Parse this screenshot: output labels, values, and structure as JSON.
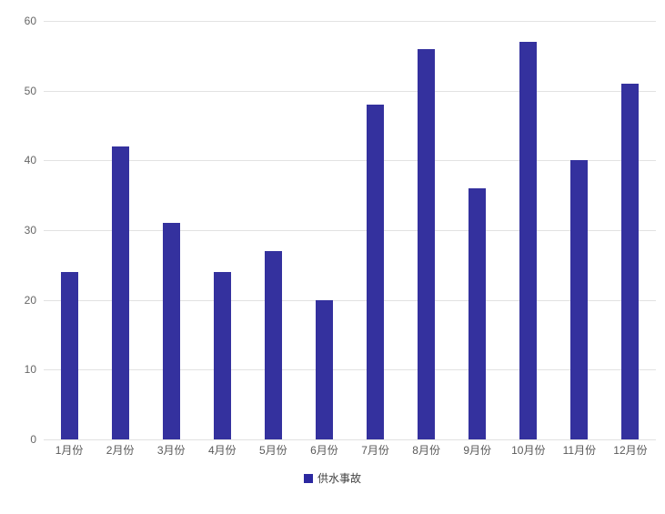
{
  "chart_data": {
    "type": "bar",
    "title": "",
    "xlabel": "",
    "ylabel": "",
    "categories": [
      "1月份",
      "2月份",
      "3月份",
      "4月份",
      "5月份",
      "6月份",
      "7月份",
      "8月份",
      "9月份",
      "10月份",
      "11月份",
      "12月份"
    ],
    "values": [
      24,
      42,
      31,
      24,
      27,
      20,
      48,
      56,
      36,
      57,
      40,
      51
    ],
    "series_name": "供水事故",
    "ylim": [
      0,
      60
    ],
    "y_ticks": [
      0,
      10,
      20,
      30,
      40,
      50,
      60
    ],
    "grid": true,
    "legend_position": "bottom",
    "bar_color": "#34319e",
    "legend_swatch_color": "#2b28a0",
    "grid_color": "#e2e2e2",
    "y_label_color": "#666666",
    "x_label_color": "#595959",
    "background_color": "#ffffff"
  }
}
